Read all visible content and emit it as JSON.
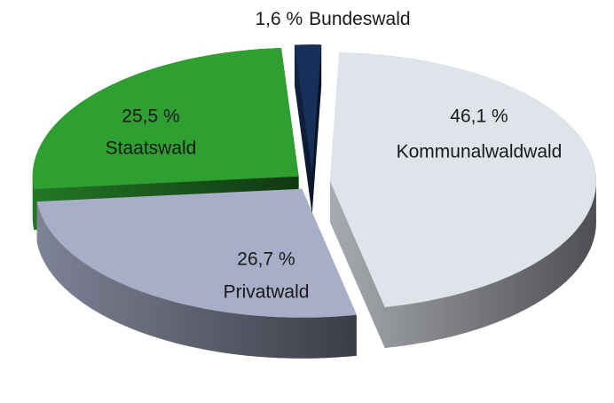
{
  "chart_data": {
    "type": "pie3d",
    "categories": [
      "Kommunalwaldwald",
      "Privatwald",
      "Staatswald",
      "Bundeswald"
    ],
    "values": [
      46.1,
      26.7,
      25.5,
      1.6
    ],
    "value_labels": [
      "46,1 %",
      "26,7 %",
      "25,5 %",
      "1,6 %"
    ],
    "colors": [
      "#dfe3ea",
      "#a8aec8",
      "#2f9f32",
      "#17305a"
    ]
  }
}
